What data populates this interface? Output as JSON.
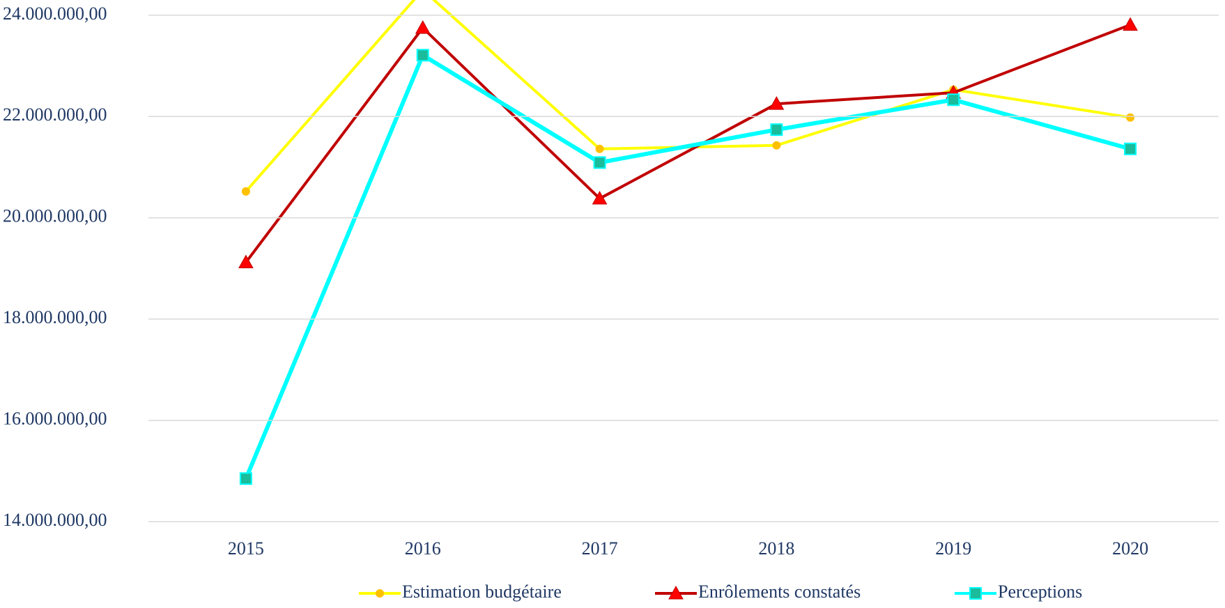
{
  "chart_data": {
    "type": "line",
    "categories": [
      "2015",
      "2016",
      "2017",
      "2018",
      "2019",
      "2020"
    ],
    "series": [
      {
        "name": "Estimation budgétaire",
        "color": "#ffff00",
        "marker": "circle",
        "marker_color": "#ffc000",
        "values": [
          20520000,
          24500000,
          21360000,
          21430000,
          22530000,
          21980000
        ]
      },
      {
        "name": "Enrôlements constatés",
        "color": "#c00000",
        "marker": "triangle",
        "marker_color": "#ff0000",
        "values": [
          19120000,
          23750000,
          20380000,
          22250000,
          22470000,
          23810000
        ]
      },
      {
        "name": "Perceptions",
        "color": "#00ffff",
        "marker": "square",
        "marker_color": "#1abc9c",
        "values": [
          14850000,
          23210000,
          21090000,
          21740000,
          22330000,
          21360000
        ]
      }
    ],
    "ylim": [
      14000000,
      24300000
    ],
    "yticks": [
      {
        "value": 14000000,
        "label": "14.000.000,00"
      },
      {
        "value": 16000000,
        "label": "16.000.000,00"
      },
      {
        "value": 18000000,
        "label": "18.000.000,00"
      },
      {
        "value": 20000000,
        "label": "20.000.000,00"
      },
      {
        "value": 22000000,
        "label": "22.000.000,00"
      },
      {
        "value": 24000000,
        "label": "24.000.000,00"
      }
    ],
    "grid": true,
    "legend": "bottom"
  }
}
